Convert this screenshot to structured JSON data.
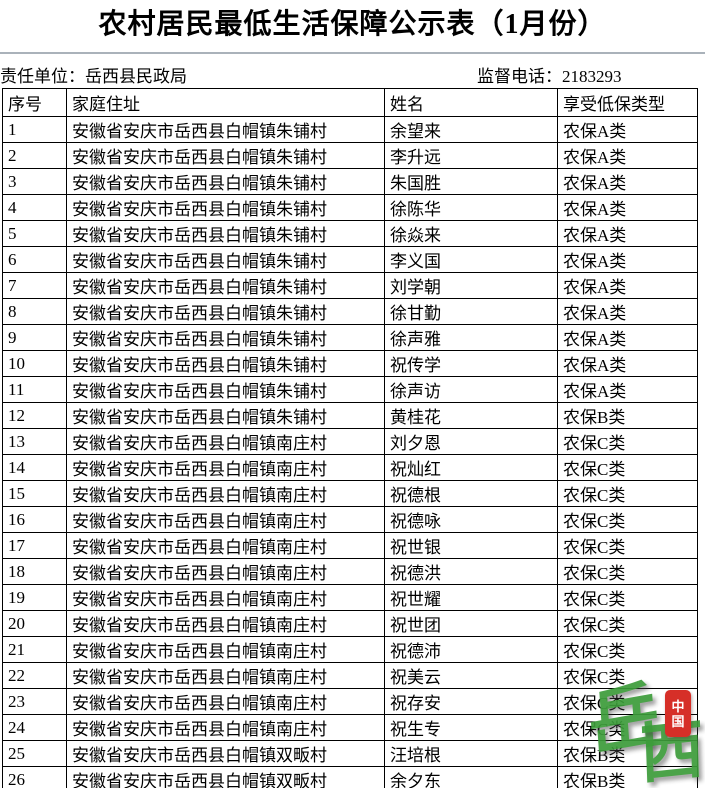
{
  "title": "农村居民最低生活保障公示表（1月份）",
  "meta": {
    "responsible_unit_label": "责任单位：",
    "responsible_unit_value": "岳西县民政局",
    "phone_label": "监督电话：",
    "phone_value": "2183293"
  },
  "table": {
    "headers": [
      "序号",
      "家庭住址",
      "姓名",
      "享受低保类型"
    ],
    "rows": [
      {
        "no": "1",
        "address": "安徽省安庆市岳西县白帽镇朱铺村",
        "name": "余望来",
        "type": "农保A类"
      },
      {
        "no": "2",
        "address": "安徽省安庆市岳西县白帽镇朱铺村",
        "name": "李升远",
        "type": "农保A类"
      },
      {
        "no": "3",
        "address": "安徽省安庆市岳西县白帽镇朱铺村",
        "name": "朱国胜",
        "type": "农保A类"
      },
      {
        "no": "4",
        "address": "安徽省安庆市岳西县白帽镇朱铺村",
        "name": "徐陈华",
        "type": "农保A类"
      },
      {
        "no": "5",
        "address": "安徽省安庆市岳西县白帽镇朱铺村",
        "name": "徐焱来",
        "type": "农保A类"
      },
      {
        "no": "6",
        "address": "安徽省安庆市岳西县白帽镇朱铺村",
        "name": "李义国",
        "type": "农保A类"
      },
      {
        "no": "7",
        "address": "安徽省安庆市岳西县白帽镇朱铺村",
        "name": "刘学朝",
        "type": "农保A类"
      },
      {
        "no": "8",
        "address": "安徽省安庆市岳西县白帽镇朱铺村",
        "name": "徐甘勤",
        "type": "农保A类"
      },
      {
        "no": "9",
        "address": "安徽省安庆市岳西县白帽镇朱铺村",
        "name": "徐声雅",
        "type": "农保A类"
      },
      {
        "no": "10",
        "address": "安徽省安庆市岳西县白帽镇朱铺村",
        "name": "祝传学",
        "type": "农保A类"
      },
      {
        "no": "11",
        "address": "安徽省安庆市岳西县白帽镇朱铺村",
        "name": "徐声访",
        "type": "农保A类"
      },
      {
        "no": "12",
        "address": "安徽省安庆市岳西县白帽镇朱铺村",
        "name": "黄桂花",
        "type": "农保B类"
      },
      {
        "no": "13",
        "address": "安徽省安庆市岳西县白帽镇南庄村",
        "name": "刘夕恩",
        "type": "农保C类"
      },
      {
        "no": "14",
        "address": "安徽省安庆市岳西县白帽镇南庄村",
        "name": "祝灿红",
        "type": "农保C类"
      },
      {
        "no": "15",
        "address": "安徽省安庆市岳西县白帽镇南庄村",
        "name": "祝德根",
        "type": "农保C类"
      },
      {
        "no": "16",
        "address": "安徽省安庆市岳西县白帽镇南庄村",
        "name": "祝德咏",
        "type": "农保C类"
      },
      {
        "no": "17",
        "address": "安徽省安庆市岳西县白帽镇南庄村",
        "name": "祝世银",
        "type": "农保C类"
      },
      {
        "no": "18",
        "address": "安徽省安庆市岳西县白帽镇南庄村",
        "name": "祝德洪",
        "type": "农保C类"
      },
      {
        "no": "19",
        "address": "安徽省安庆市岳西县白帽镇南庄村",
        "name": "祝世耀",
        "type": "农保C类"
      },
      {
        "no": "20",
        "address": "安徽省安庆市岳西县白帽镇南庄村",
        "name": "祝世团",
        "type": "农保C类"
      },
      {
        "no": "21",
        "address": "安徽省安庆市岳西县白帽镇南庄村",
        "name": "祝德沛",
        "type": "农保C类"
      },
      {
        "no": "22",
        "address": "安徽省安庆市岳西县白帽镇南庄村",
        "name": "祝美云",
        "type": "农保C类"
      },
      {
        "no": "23",
        "address": "安徽省安庆市岳西县白帽镇南庄村",
        "name": "祝存安",
        "type": "农保C类"
      },
      {
        "no": "24",
        "address": "安徽省安庆市岳西县白帽镇南庄村",
        "name": "祝生专",
        "type": "农保C类"
      },
      {
        "no": "25",
        "address": "安徽省安庆市岳西县白帽镇双畈村",
        "name": "汪培根",
        "type": "农保B类"
      },
      {
        "no": "26",
        "address": "安徽省安庆市岳西县白帽镇双畈村",
        "name": "余夕东",
        "type": "农保B类"
      }
    ]
  },
  "watermark": {
    "char1": "岳",
    "char2": "西",
    "seal_char1": "中",
    "seal_char2": "国",
    "green_color": "#3c9c3a",
    "red_color": "#d62f28"
  }
}
